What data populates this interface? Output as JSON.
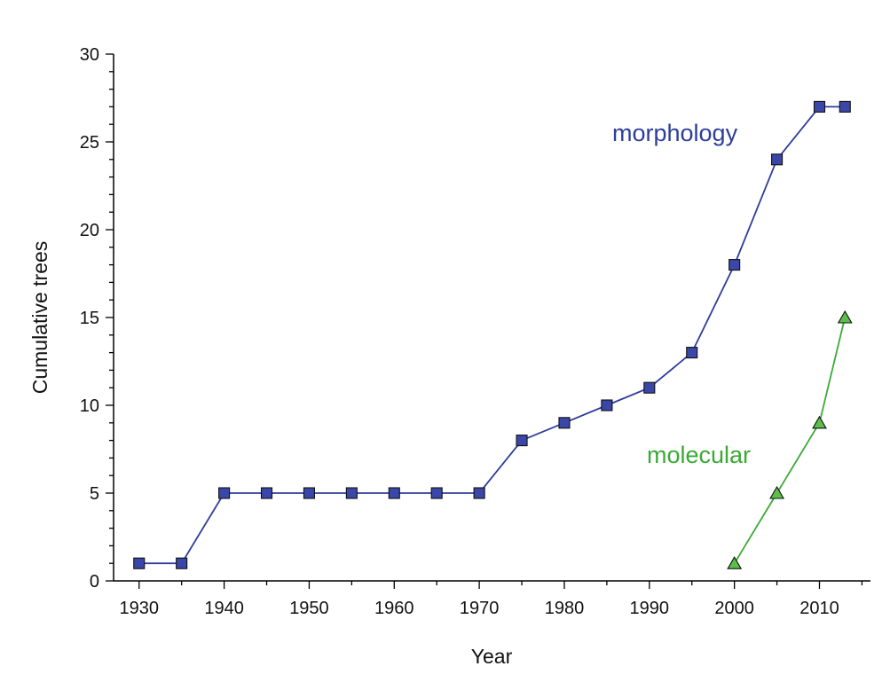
{
  "chart_data": {
    "type": "line",
    "title": "",
    "xlabel": "Year",
    "ylabel": "Cumulative trees",
    "xlim": [
      1927,
      2016
    ],
    "ylim": [
      0,
      30
    ],
    "x_ticks": [
      1930,
      1940,
      1950,
      1960,
      1970,
      1980,
      1990,
      2000,
      2010
    ],
    "x_minor_ticks": [
      1935,
      1945,
      1955,
      1965,
      1975,
      1985,
      1995,
      2005,
      2015
    ],
    "y_ticks": [
      0,
      5,
      10,
      15,
      20,
      25,
      30
    ],
    "y_minor_ticks": [
      1,
      2,
      3,
      4,
      6,
      7,
      8,
      9,
      11,
      12,
      13,
      14,
      16,
      17,
      18,
      19,
      21,
      22,
      23,
      24,
      26,
      27,
      28,
      29
    ],
    "grid": false,
    "legend": "none",
    "series": [
      {
        "name": "morphology",
        "marker": "square",
        "color": "#2e3d9a",
        "marker_fill": "#3a47a8",
        "x": [
          1930,
          1935,
          1940,
          1945,
          1950,
          1955,
          1960,
          1965,
          1970,
          1975,
          1980,
          1985,
          1990,
          1995,
          2000,
          2005,
          2010,
          2013
        ],
        "y": [
          1,
          1,
          5,
          5,
          5,
          5,
          5,
          5,
          5,
          8,
          9,
          10,
          11,
          13,
          18,
          24,
          27,
          27
        ]
      },
      {
        "name": "molecular",
        "marker": "triangle",
        "color": "#3aaa35",
        "marker_fill": "#5cbf4a",
        "x": [
          2000,
          2005,
          2010,
          2013
        ],
        "y": [
          1,
          5,
          9,
          15
        ]
      }
    ]
  }
}
